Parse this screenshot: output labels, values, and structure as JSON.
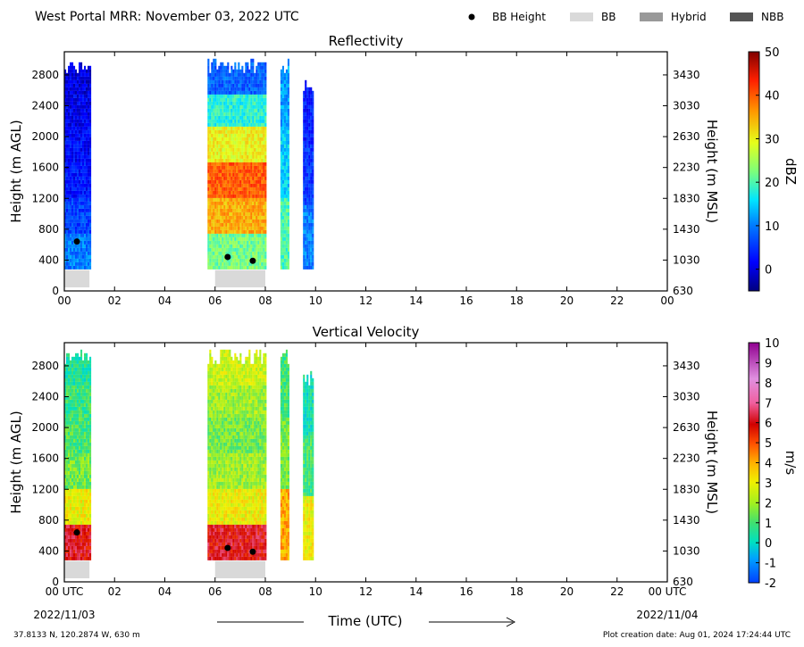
{
  "header": {
    "title": "West Portal MRR:  November 03, 2022 UTC",
    "legend": [
      {
        "label": "BB Height",
        "swatch": "dot",
        "color": "#000000"
      },
      {
        "label": "BB",
        "swatch": "box",
        "color": "#d9d9d9"
      },
      {
        "label": "Hybrid",
        "swatch": "box",
        "color": "#999999"
      },
      {
        "label": "NBB",
        "swatch": "box",
        "color": "#555555"
      }
    ]
  },
  "footer": {
    "location": "37.8133 N, 120.2874 W, 630 m",
    "creation": "Plot creation date: Aug 01, 2024 17:24:44 UTC",
    "date_left": "2022/11/03",
    "date_right": "2022/11/04"
  },
  "chart_data": [
    {
      "type": "heatmap",
      "title": "Reflectivity",
      "xlabel": "",
      "ylabel": "Height (m AGL)",
      "ylabel_right": "Height (m MSL)",
      "xlim": [
        0,
        24
      ],
      "ylim": [
        0,
        3100
      ],
      "xticks": [
        "00",
        "02",
        "04",
        "06",
        "08",
        "10",
        "12",
        "14",
        "16",
        "18",
        "20",
        "22",
        "00"
      ],
      "yticks": [
        0,
        400,
        800,
        1200,
        1600,
        2000,
        2400,
        2800
      ],
      "yticks_right": [
        "630",
        "1030",
        "1430",
        "1830",
        "2230",
        "2630",
        "3030",
        "3430"
      ],
      "colorbar": {
        "label": "dBZ",
        "min": -5,
        "max": 50,
        "ticks": [
          "0",
          "10",
          "20",
          "30",
          "40",
          "50"
        ]
      },
      "bb_height_points": [
        {
          "x": 0.5,
          "y": 640
        },
        {
          "x": 6.5,
          "y": 440
        },
        {
          "x": 7.5,
          "y": 390
        }
      ],
      "bb_bands": [
        {
          "x0": 0.0,
          "x1": 1.0,
          "type": "BB"
        },
        {
          "x0": 6.0,
          "x1": 8.0,
          "type": "BB"
        }
      ],
      "echo_columns": [
        {
          "x0": 0.0,
          "x1": 1.0,
          "y0": 280,
          "y1": 3000,
          "values": [
            10,
            6,
            3,
            2,
            1,
            0
          ]
        },
        {
          "x0": 5.7,
          "x1": 8.0,
          "y0": 280,
          "y1": 3000,
          "values": [
            22,
            35,
            40,
            30,
            18,
            8
          ]
        },
        {
          "x0": 8.6,
          "x1": 8.9,
          "y0": 280,
          "y1": 3000,
          "values": [
            20,
            15,
            12
          ]
        },
        {
          "x0": 9.5,
          "x1": 9.9,
          "y0": 280,
          "y1": 2700,
          "values": [
            10,
            5,
            3
          ]
        }
      ]
    },
    {
      "type": "heatmap",
      "title": "Vertical Velocity",
      "xlabel": "Time (UTC)",
      "ylabel": "Height (m AGL)",
      "ylabel_right": "Height (m MSL)",
      "xlim": [
        0,
        24
      ],
      "ylim": [
        0,
        3100
      ],
      "xticks": [
        "00 UTC",
        "02",
        "04",
        "06",
        "08",
        "10",
        "12",
        "14",
        "16",
        "18",
        "20",
        "22",
        "00 UTC"
      ],
      "yticks": [
        0,
        400,
        800,
        1200,
        1600,
        2000,
        2400,
        2800
      ],
      "yticks_right": [
        "630",
        "1030",
        "1430",
        "1830",
        "2230",
        "2630",
        "3030",
        "3430"
      ],
      "colorbar": {
        "label": "m/s",
        "min": -2,
        "max": 10,
        "ticks": [
          "-2",
          "-1",
          "0",
          "1",
          "2",
          "3",
          "4",
          "5",
          "6",
          "7",
          "8",
          "9",
          "10"
        ]
      },
      "bb_height_points": [
        {
          "x": 0.5,
          "y": 640
        },
        {
          "x": 6.5,
          "y": 440
        },
        {
          "x": 7.5,
          "y": 390
        }
      ],
      "bb_bands": [
        {
          "x0": 0.0,
          "x1": 1.0,
          "type": "BB"
        },
        {
          "x0": 6.0,
          "x1": 8.0,
          "type": "BB"
        }
      ],
      "echo_columns": [
        {
          "x0": 0.0,
          "x1": 1.0,
          "y0": 280,
          "y1": 3000,
          "values": [
            6,
            3,
            1.5,
            1,
            0.8,
            0.5
          ]
        },
        {
          "x0": 5.7,
          "x1": 8.0,
          "y0": 280,
          "y1": 3000,
          "values": [
            6,
            3,
            2,
            1.5,
            2,
            2.5
          ]
        },
        {
          "x0": 8.6,
          "x1": 8.9,
          "y0": 280,
          "y1": 3000,
          "values": [
            4,
            1.5,
            1
          ]
        },
        {
          "x0": 9.5,
          "x1": 9.9,
          "y0": 280,
          "y1": 2700,
          "values": [
            3,
            1,
            0.3
          ]
        }
      ]
    }
  ]
}
